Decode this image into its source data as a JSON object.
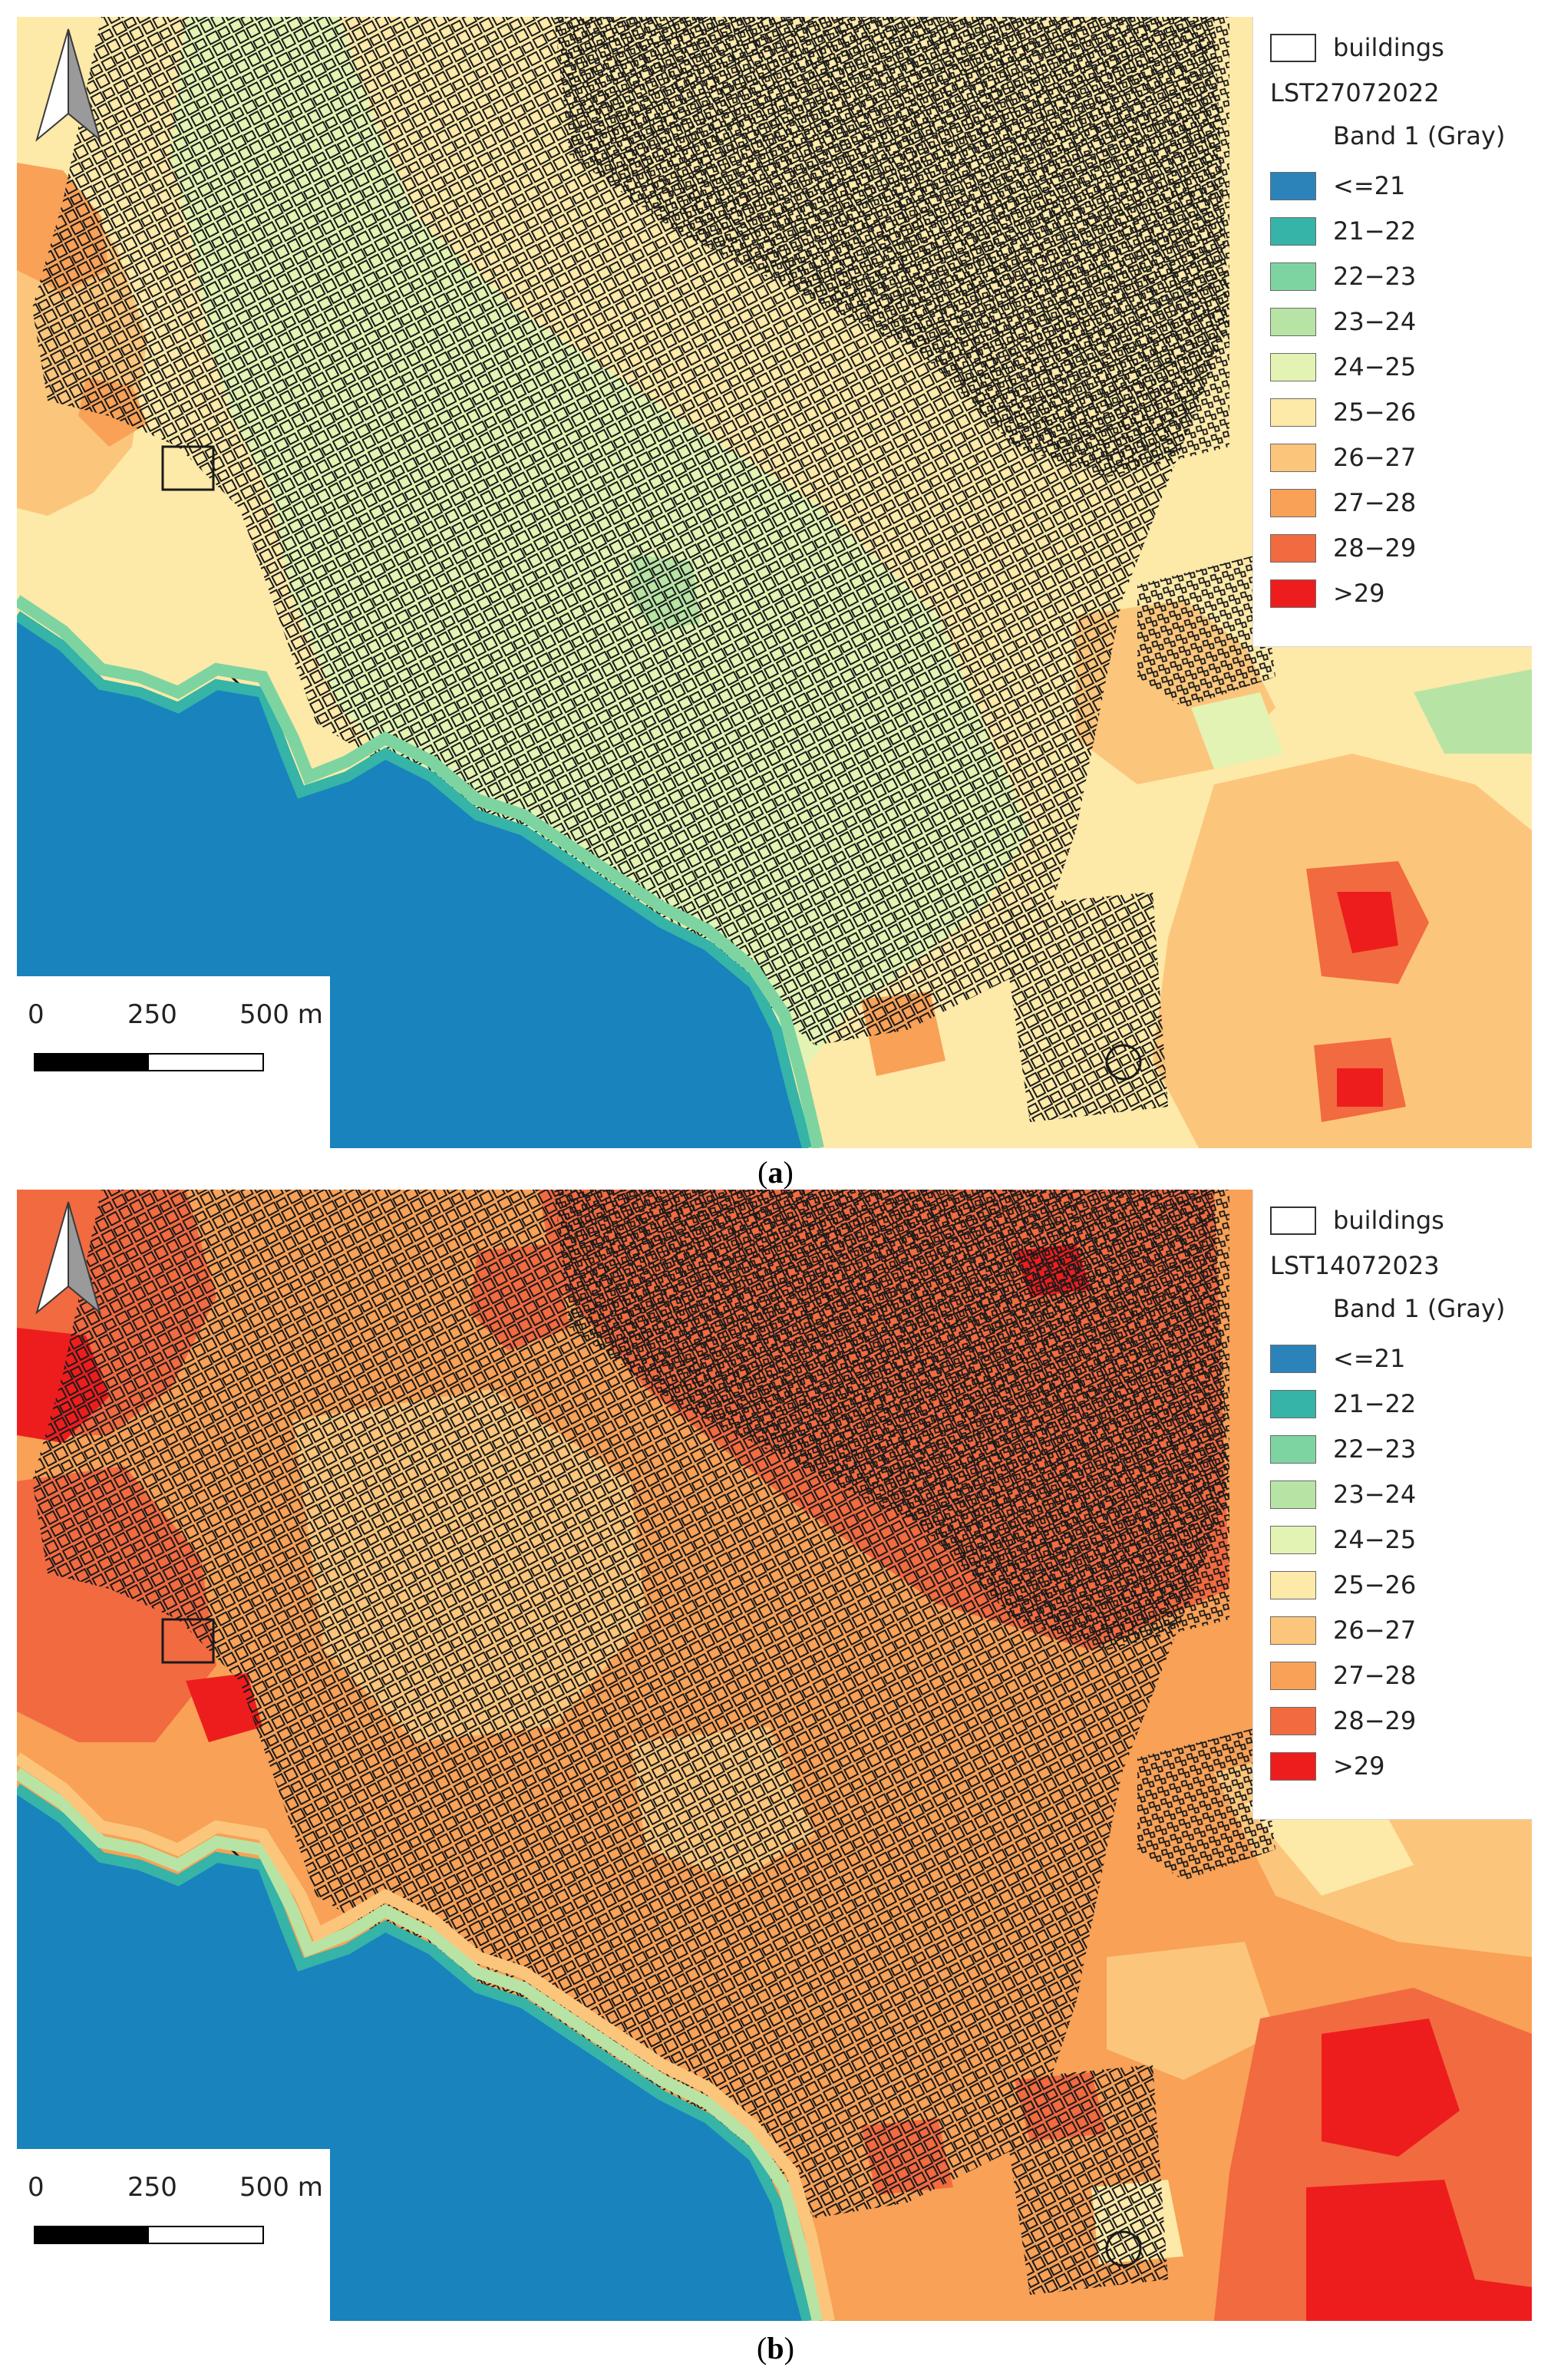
{
  "colors": {
    "sea": "#1883bd",
    "lt21": "#2b83ba",
    "c21_22": "#35b4a7",
    "c22_23": "#7ed4a0",
    "c23_24": "#b7e4a4",
    "c24_25": "#e3f3b3",
    "c25_26": "#fde9a8",
    "c26_27": "#fbc67b",
    "c27_28": "#f8a157",
    "c28_29": "#f26a40",
    "gt29": "#ee1d1d",
    "building_outline": "#1a1a1a"
  },
  "legend_classes": [
    {
      "label": "<=21",
      "color": "#2b83ba"
    },
    {
      "label": "21−22",
      "color": "#35b4a7"
    },
    {
      "label": "22−23",
      "color": "#7ed4a0"
    },
    {
      "label": "23−24",
      "color": "#b7e4a4"
    },
    {
      "label": "24−25",
      "color": "#e3f3b3"
    },
    {
      "label": "25−26",
      "color": "#fde9a8"
    },
    {
      "label": "26−27",
      "color": "#fbc67b"
    },
    {
      "label": "27−28",
      "color": "#f8a157"
    },
    {
      "label": "28−29",
      "color": "#f26a40"
    },
    {
      "label": ">29",
      "color": "#ee1d1d"
    }
  ],
  "panels": [
    {
      "id": "a",
      "legend": {
        "buildings_label": "buildings",
        "layer_name": "LST27072022",
        "band_label": "Band 1 (Gray)"
      },
      "scale": {
        "t0": "0",
        "t1": "250",
        "t2": "500 m"
      },
      "caption_letter": "a"
    },
    {
      "id": "b",
      "legend": {
        "buildings_label": "buildings",
        "layer_name": "LST14072023",
        "band_label": "Band 1 (Gray)"
      },
      "scale": {
        "t0": "0",
        "t1": "250",
        "t2": "500 m"
      },
      "caption_letter": "b"
    }
  ]
}
